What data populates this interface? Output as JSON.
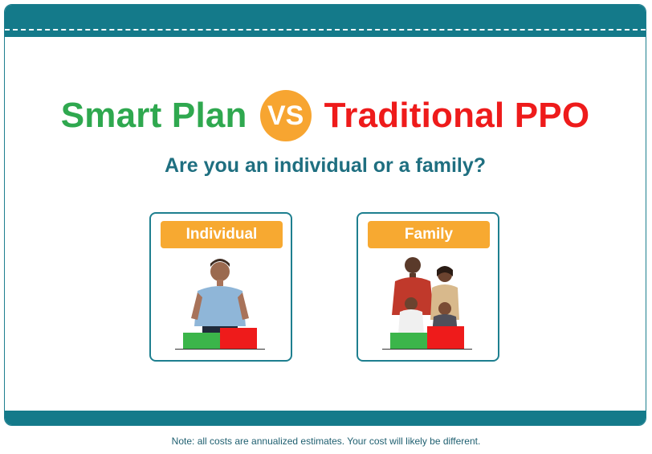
{
  "header": {
    "title_left": "Smart Plan",
    "vs": "VS",
    "title_right": "Traditional PPO"
  },
  "question": "Are you an individual or a family?",
  "options": [
    {
      "label": "Individual",
      "icon": "individual-person-icon"
    },
    {
      "label": "Family",
      "icon": "family-group-icon"
    }
  ],
  "colors": {
    "brand_teal": "#147a8a",
    "smart_green": "#2fa84f",
    "ppo_red": "#ee1b1b",
    "accent_orange": "#f7a531",
    "question_text": "#1f6f80"
  },
  "footer": {
    "note": "Note: all costs are annualized estimates. Your cost will likely be different."
  }
}
